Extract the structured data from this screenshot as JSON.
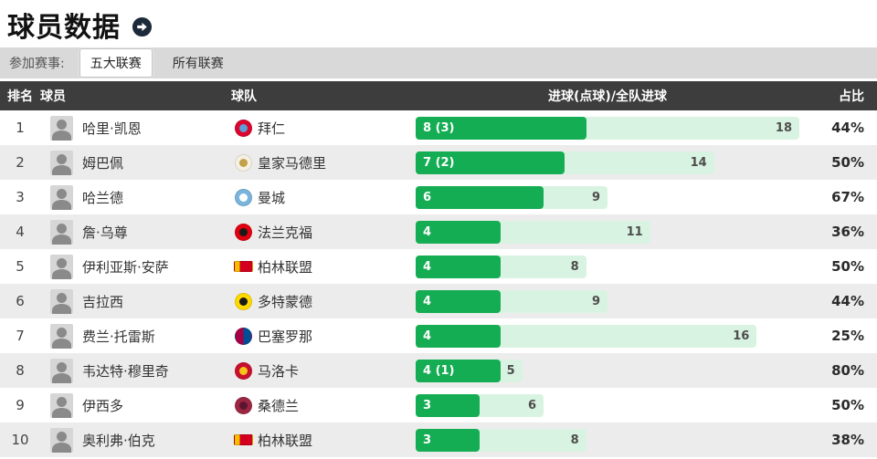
{
  "page": {
    "title": "球员数据",
    "more_icon": "arrow-right-circle"
  },
  "filter": {
    "label": "参加赛事:",
    "tabs": [
      {
        "label": "五大联赛",
        "selected": true
      },
      {
        "label": "所有联赛",
        "selected": false
      }
    ]
  },
  "colors": {
    "bar_green": "#15ad53",
    "bar_track": "#d9f3e2",
    "header_bg": "#3d3d3d",
    "tabbar_bg": "#d9d9d9",
    "row_alt": "#ececec",
    "icon_circle": "#1c2a39"
  },
  "table": {
    "headers": {
      "rank": "排名",
      "player": "球员",
      "team": "球队",
      "goals": "进球(点球)/全队进球",
      "share": "占比"
    },
    "max_goals": 18,
    "rows": [
      {
        "rank": "1",
        "player": "哈里·凯恩",
        "team": "拜仁",
        "goals_label": "8 (3)",
        "goals": 8,
        "team_goals": 18,
        "share": "44%",
        "logo": {
          "shape": "circle",
          "c1": "#dc052d",
          "c2": "#5aa0d8"
        }
      },
      {
        "rank": "2",
        "player": "姆巴佩",
        "team": "皇家马德里",
        "goals_label": "7 (2)",
        "goals": 7,
        "team_goals": 14,
        "share": "50%",
        "logo": {
          "shape": "circle",
          "c1": "#f5f1e2",
          "c2": "#c3a04a"
        }
      },
      {
        "rank": "3",
        "player": "哈兰德",
        "team": "曼城",
        "goals_label": "6",
        "goals": 6,
        "team_goals": 9,
        "share": "67%",
        "logo": {
          "shape": "circle",
          "c1": "#79b5dc",
          "c2": "#ffffff"
        }
      },
      {
        "rank": "4",
        "player": "詹·乌尊",
        "team": "法兰克福",
        "goals_label": "4",
        "goals": 4,
        "team_goals": 11,
        "share": "36%",
        "logo": {
          "shape": "circle",
          "c1": "#e1000f",
          "c2": "#1a1a1a"
        }
      },
      {
        "rank": "5",
        "player": "伊利亚斯·安萨",
        "team": "柏林联盟",
        "goals_label": "4",
        "goals": 4,
        "team_goals": 8,
        "share": "50%",
        "logo": {
          "shape": "flag",
          "c1": "#d2001e",
          "c2": "#f3c000"
        }
      },
      {
        "rank": "6",
        "player": "吉拉西",
        "team": "多特蒙德",
        "goals_label": "4",
        "goals": 4,
        "team_goals": 9,
        "share": "44%",
        "logo": {
          "shape": "circle",
          "c1": "#ffd900",
          "c2": "#1a1a1a"
        }
      },
      {
        "rank": "7",
        "player": "费兰·托雷斯",
        "team": "巴塞罗那",
        "goals_label": "4",
        "goals": 4,
        "team_goals": 16,
        "share": "25%",
        "logo": {
          "shape": "split",
          "c1": "#a50044",
          "c2": "#004d98"
        }
      },
      {
        "rank": "8",
        "player": "韦达特·穆里奇",
        "team": "马洛卡",
        "goals_label": "4 (1)",
        "goals": 4,
        "team_goals": 5,
        "share": "80%",
        "logo": {
          "shape": "circle",
          "c1": "#c8102e",
          "c2": "#f5c518"
        }
      },
      {
        "rank": "9",
        "player": "伊西多",
        "team": "桑德兰",
        "goals_label": "3",
        "goals": 3,
        "team_goals": 6,
        "share": "50%",
        "logo": {
          "shape": "circle",
          "c1": "#9b2743",
          "c2": "#5c1530"
        }
      },
      {
        "rank": "10",
        "player": "奥利弗·伯克",
        "team": "柏林联盟",
        "goals_label": "3",
        "goals": 3,
        "team_goals": 8,
        "share": "38%",
        "logo": {
          "shape": "flag",
          "c1": "#d2001e",
          "c2": "#f3c000"
        }
      }
    ]
  }
}
